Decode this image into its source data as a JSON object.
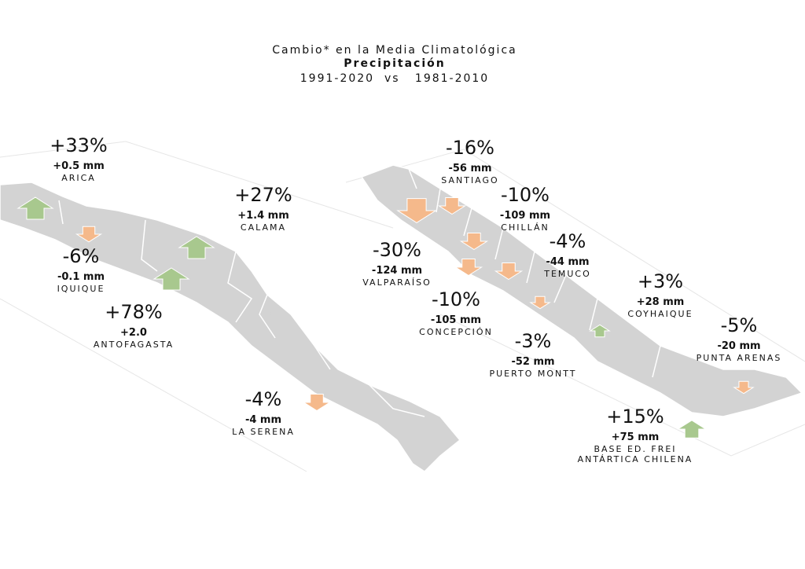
{
  "header": {
    "title": "Cambio* en la Media Climatológica",
    "subtitle": "Precipitación",
    "period": "1991-2020  vs   1981-2010"
  },
  "stations": [
    {
      "percent": "+33%",
      "mm": "+0.5 mm",
      "name": [
        "ARICA"
      ]
    },
    {
      "percent": "+27%",
      "mm": "+1.4 mm",
      "name": [
        "CALAMA"
      ]
    },
    {
      "percent": "-6%",
      "mm": "-0.1 mm",
      "name": [
        "IQUIQUE"
      ]
    },
    {
      "percent": "+78%",
      "mm": "+2.0",
      "name": [
        "ANTOFAGASTA"
      ]
    },
    {
      "percent": "-4%",
      "mm": "-4 mm",
      "name": [
        "LA SERENA"
      ]
    },
    {
      "percent": "-16%",
      "mm": "-56 mm",
      "name": [
        "SANTIAGO"
      ]
    },
    {
      "percent": "-10%",
      "mm": "-109 mm",
      "name": [
        "CHILLÁN"
      ]
    },
    {
      "percent": "-30%",
      "mm": "-124 mm",
      "name": [
        "VALPARAÍSO"
      ]
    },
    {
      "percent": "-4%",
      "mm": "-44 mm",
      "name": [
        "TEMUCO"
      ]
    },
    {
      "percent": "-10%",
      "mm": "-105 mm",
      "name": [
        "CONCEPCIÓN"
      ]
    },
    {
      "percent": "-3%",
      "mm": "-52 mm",
      "name": [
        "PUERTO MONTT"
      ]
    },
    {
      "percent": "+3%",
      "mm": "+28 mm",
      "name": [
        "COYHAIQUE"
      ]
    },
    {
      "percent": "-5%",
      "mm": "-20 mm",
      "name": [
        "PUNTA ARENAS"
      ]
    },
    {
      "percent": "+15%",
      "mm": "+75 mm",
      "name": [
        "BASE ED. FREI",
        "ANTÁRTICA CHILENA"
      ]
    }
  ]
}
